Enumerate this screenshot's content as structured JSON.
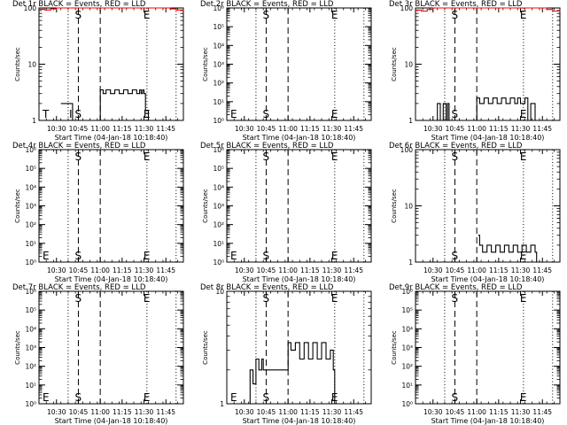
{
  "chart_data": [
    {
      "type": "line",
      "title": "Det 1r BLACK = Events, RED = LLD",
      "ylabel": "Counts/sec",
      "xlabel": "Start Time (04-Jan-18 10:18:40)",
      "yscale": "log",
      "ylim": [
        1,
        100
      ],
      "y_tick_labels": [
        "1",
        "10",
        "100"
      ],
      "x_ticks": [
        "10:30",
        "10:45",
        "11:00",
        "11:15",
        "11:30",
        "11:45"
      ],
      "xlim": [
        "10:18",
        "11:57"
      ],
      "markers": [
        {
          "label": "S",
          "time": "10:45",
          "style": "dashed"
        },
        {
          "label": "E",
          "time": "11:32",
          "style": "dotted"
        }
      ],
      "extra_lines": [
        {
          "time": "10:38",
          "style": "dotted"
        },
        {
          "time": "11:00",
          "style": "dashed"
        },
        {
          "time": "11:52",
          "style": "dotted"
        }
      ],
      "segment_labels": [
        "T",
        "I"
      ],
      "series": [
        {
          "color": "#000000",
          "x": [
            "10:33",
            "10:38",
            "10:39",
            "10:40",
            "10:41",
            "11:00",
            "11:02",
            "11:04",
            "11:07",
            "11:10",
            "11:13",
            "11:16",
            "11:19",
            "11:22",
            "11:25",
            "11:27",
            "11:28",
            "11:29",
            "11:30",
            "11:31",
            "11:33"
          ],
          "y": [
            2,
            2,
            2,
            2,
            1,
            3.5,
            3,
            3.5,
            3,
            3.5,
            3,
            3.5,
            3,
            3.5,
            3,
            3.5,
            3,
            3.5,
            3,
            1.5,
            1
          ]
        },
        {
          "color": "#ff0000",
          "x": [
            "10:18",
            "10:22",
            "10:26",
            "10:30",
            "10:34",
            "10:36",
            "11:44",
            "11:48",
            "11:52",
            "11:57"
          ],
          "y": [
            95,
            92,
            96,
            100,
            100,
            100,
            100,
            96,
            92,
            95
          ]
        }
      ]
    },
    {
      "type": "line",
      "title": "Det 2r BLACK = Events, RED = LLD",
      "ylabel": "Counts/sec",
      "xlabel": "Start Time (04-Jan-18 10:18:40)",
      "yscale": "log",
      "ylim": [
        1,
        1000000
      ],
      "y_tick_labels": [
        "10⁰",
        "10¹",
        "10²",
        "10³",
        "10⁴",
        "10⁵",
        "10⁶"
      ],
      "x_ticks": [
        "10:30",
        "10:45",
        "11:00",
        "11:15",
        "11:30",
        "11:45"
      ],
      "xlim": [
        "10:18",
        "11:57"
      ],
      "markers": [
        {
          "label": "S",
          "time": "10:45",
          "style": "dashed"
        },
        {
          "label": "E",
          "time": "11:32",
          "style": "dotted"
        }
      ],
      "extra_lines": [
        {
          "time": "10:38",
          "style": "dotted"
        },
        {
          "time": "11:00",
          "style": "dashed"
        },
        {
          "time": "11:52",
          "style": "dotted"
        }
      ],
      "segment_labels": [
        "E"
      ],
      "series": []
    },
    {
      "type": "line",
      "title": "Det 3r BLACK = Events, RED = LLD",
      "ylabel": "Counts/sec",
      "xlabel": "Start Time (04-Jan-18 10:18:40)",
      "yscale": "log",
      "ylim": [
        1,
        100
      ],
      "y_tick_labels": [
        "1",
        "10",
        "100"
      ],
      "x_ticks": [
        "10:30",
        "10:45",
        "11:00",
        "11:15",
        "11:30",
        "11:45"
      ],
      "xlim": [
        "10:18",
        "11:57"
      ],
      "markers": [
        {
          "label": "S",
          "time": "10:45",
          "style": "dashed"
        },
        {
          "label": "E",
          "time": "11:32",
          "style": "dotted"
        }
      ],
      "extra_lines": [
        {
          "time": "10:38",
          "style": "dotted"
        },
        {
          "time": "11:00",
          "style": "dashed"
        },
        {
          "time": "11:52",
          "style": "dotted"
        }
      ],
      "segment_labels": [],
      "series": [
        {
          "color": "#000000",
          "x": [
            "10:31",
            "10:33",
            "10:35",
            "10:37",
            "10:39",
            "10:40",
            "10:41",
            "11:00",
            "11:02",
            "11:05",
            "11:08",
            "11:11",
            "11:14",
            "11:17",
            "11:20",
            "11:23",
            "11:26",
            "11:28",
            "11:30",
            "11:33",
            "11:35",
            "11:37",
            "11:40"
          ],
          "y": [
            1,
            2,
            1,
            2,
            1,
            2,
            1,
            2.5,
            2,
            2.5,
            2,
            2.5,
            2,
            2.5,
            2,
            2.5,
            2,
            2.5,
            2,
            2.5,
            1,
            2,
            1
          ]
        },
        {
          "color": "#ff0000",
          "x": [
            "10:18",
            "10:22",
            "10:26",
            "10:30",
            "10:34",
            "10:36",
            "11:44",
            "11:48",
            "11:52",
            "11:57"
          ],
          "y": [
            92,
            88,
            94,
            100,
            100,
            100,
            100,
            94,
            88,
            92
          ]
        }
      ]
    },
    {
      "type": "line",
      "title": "Det 4r BLACK = Events, RED = LLD",
      "ylabel": "Counts/sec",
      "xlabel": "Start Time (04-Jan-18 10:18:40)",
      "yscale": "log",
      "ylim": [
        1,
        1000000
      ],
      "y_tick_labels": [
        "10⁰",
        "10¹",
        "10²",
        "10³",
        "10⁴",
        "10⁵",
        "10⁶"
      ],
      "x_ticks": [
        "10:30",
        "10:45",
        "11:00",
        "11:15",
        "11:30",
        "11:45"
      ],
      "xlim": [
        "10:18",
        "11:57"
      ],
      "markers": [
        {
          "label": "S",
          "time": "10:45",
          "style": "dashed"
        },
        {
          "label": "E",
          "time": "11:32",
          "style": "dotted"
        }
      ],
      "extra_lines": [
        {
          "time": "10:38",
          "style": "dotted"
        },
        {
          "time": "11:00",
          "style": "dashed"
        },
        {
          "time": "11:52",
          "style": "dotted"
        }
      ],
      "segment_labels": [
        "E"
      ],
      "series": []
    },
    {
      "type": "line",
      "title": "Det 5r BLACK = Events, RED = LLD",
      "ylabel": "Counts/sec",
      "xlabel": "Start Time (04-Jan-18 10:18:40)",
      "yscale": "log",
      "ylim": [
        1,
        1000000
      ],
      "y_tick_labels": [
        "10⁰",
        "10¹",
        "10²",
        "10³",
        "10⁴",
        "10⁵",
        "10⁶"
      ],
      "x_ticks": [
        "10:30",
        "10:45",
        "11:00",
        "11:15",
        "11:30",
        "11:45"
      ],
      "xlim": [
        "10:18",
        "11:57"
      ],
      "markers": [
        {
          "label": "S",
          "time": "10:45",
          "style": "dashed"
        },
        {
          "label": "E",
          "time": "11:32",
          "style": "dotted"
        }
      ],
      "extra_lines": [
        {
          "time": "10:38",
          "style": "dotted"
        },
        {
          "time": "11:00",
          "style": "dashed"
        },
        {
          "time": "11:52",
          "style": "dotted"
        }
      ],
      "segment_labels": [
        "E"
      ],
      "series": []
    },
    {
      "type": "line",
      "title": "Det 6r BLACK = Events, RED = LLD",
      "ylabel": "Counts/sec",
      "xlabel": "Start Time (04-Jan-18 10:18:40)",
      "yscale": "log",
      "ylim": [
        1,
        100
      ],
      "y_tick_labels": [
        "1",
        "10",
        "100"
      ],
      "x_ticks": [
        "10:30",
        "10:45",
        "11:00",
        "11:15",
        "11:30",
        "11:45"
      ],
      "xlim": [
        "10:18",
        "11:57"
      ],
      "markers": [
        {
          "label": "S",
          "time": "10:45",
          "style": "dashed"
        },
        {
          "label": "E",
          "time": "11:32",
          "style": "dotted"
        }
      ],
      "extra_lines": [
        {
          "time": "10:38",
          "style": "dotted"
        },
        {
          "time": "11:00",
          "style": "dashed"
        },
        {
          "time": "11:52",
          "style": "dotted"
        }
      ],
      "segment_labels": [],
      "series": [
        {
          "color": "#000000",
          "x": [
            "11:01",
            "11:02",
            "11:04",
            "11:07",
            "11:10",
            "11:13",
            "11:16",
            "11:19",
            "11:22",
            "11:25",
            "11:28",
            "11:31",
            "11:34",
            "11:37",
            "11:40",
            "11:41"
          ],
          "y": [
            3,
            2,
            1.5,
            2,
            1.5,
            2,
            1.5,
            2,
            1.5,
            2,
            1.5,
            2,
            1.5,
            2,
            1.5,
            1
          ]
        }
      ]
    },
    {
      "type": "line",
      "title": "Det 7r BLACK = Events, RED = LLD",
      "ylabel": "Counts/sec",
      "xlabel": "Start Time (04-Jan-18 10:18:40)",
      "yscale": "log",
      "ylim": [
        1,
        1000000
      ],
      "y_tick_labels": [
        "10⁰",
        "10¹",
        "10²",
        "10³",
        "10⁴",
        "10⁵",
        "10⁶"
      ],
      "x_ticks": [
        "10:30",
        "10:45",
        "11:00",
        "11:15",
        "11:30",
        "11:45"
      ],
      "xlim": [
        "10:18",
        "11:57"
      ],
      "markers": [
        {
          "label": "S",
          "time": "10:45",
          "style": "dashed"
        },
        {
          "label": "E",
          "time": "11:32",
          "style": "dotted"
        }
      ],
      "extra_lines": [
        {
          "time": "10:38",
          "style": "dotted"
        },
        {
          "time": "11:00",
          "style": "dashed"
        },
        {
          "time": "11:52",
          "style": "dotted"
        }
      ],
      "segment_labels": [
        "E"
      ],
      "series": []
    },
    {
      "type": "line",
      "title": "Det 8r BLACK = Events, RED = LLD",
      "ylabel": "Counts/sec",
      "xlabel": "Start Time (04-Jan-18 10:18:40)",
      "yscale": "log",
      "ylim": [
        1,
        10
      ],
      "y_tick_labels": [
        "1",
        "10"
      ],
      "x_ticks": [
        "10:30",
        "10:45",
        "11:00",
        "11:15",
        "11:30",
        "11:45"
      ],
      "xlim": [
        "10:18",
        "11:57"
      ],
      "markers": [
        {
          "label": "S",
          "time": "10:45",
          "style": "dashed"
        },
        {
          "label": "E",
          "time": "11:32",
          "style": "dotted"
        }
      ],
      "extra_lines": [
        {
          "time": "10:38",
          "style": "dotted"
        },
        {
          "time": "11:00",
          "style": "dashed"
        },
        {
          "time": "11:52",
          "style": "dotted"
        }
      ],
      "segment_labels": [
        "E"
      ],
      "series": [
        {
          "color": "#000000",
          "x": [
            "10:32",
            "10:34",
            "10:36",
            "10:38",
            "10:40",
            "10:42",
            "10:43",
            "11:00",
            "11:02",
            "11:05",
            "11:08",
            "11:11",
            "11:14",
            "11:17",
            "11:20",
            "11:23",
            "11:26",
            "11:29",
            "11:31",
            "11:32"
          ],
          "y": [
            1,
            2,
            1.5,
            2.5,
            2,
            2.5,
            2,
            3.5,
            3,
            3.5,
            2.5,
            3.5,
            2.5,
            3.5,
            2.5,
            3.5,
            2.5,
            3,
            2,
            1
          ]
        }
      ]
    },
    {
      "type": "line",
      "title": "Det 9r BLACK = Events, RED = LLD",
      "ylabel": "Counts/sec",
      "xlabel": "Start Time (04-Jan-18 10:18:40)",
      "yscale": "log",
      "ylim": [
        1,
        1000000
      ],
      "y_tick_labels": [
        "10⁰",
        "10¹",
        "10²",
        "10³",
        "10⁴",
        "10⁵",
        "10⁶"
      ],
      "x_ticks": [
        "10:30",
        "10:45",
        "11:00",
        "11:15",
        "11:30",
        "11:45"
      ],
      "xlim": [
        "10:18",
        "11:57"
      ],
      "markers": [
        {
          "label": "S",
          "time": "10:45",
          "style": "dashed"
        },
        {
          "label": "E",
          "time": "11:32",
          "style": "dotted"
        }
      ],
      "extra_lines": [
        {
          "time": "10:38",
          "style": "dotted"
        },
        {
          "time": "11:00",
          "style": "dashed"
        },
        {
          "time": "11:52",
          "style": "dotted"
        }
      ],
      "segment_labels": [],
      "series": []
    }
  ]
}
